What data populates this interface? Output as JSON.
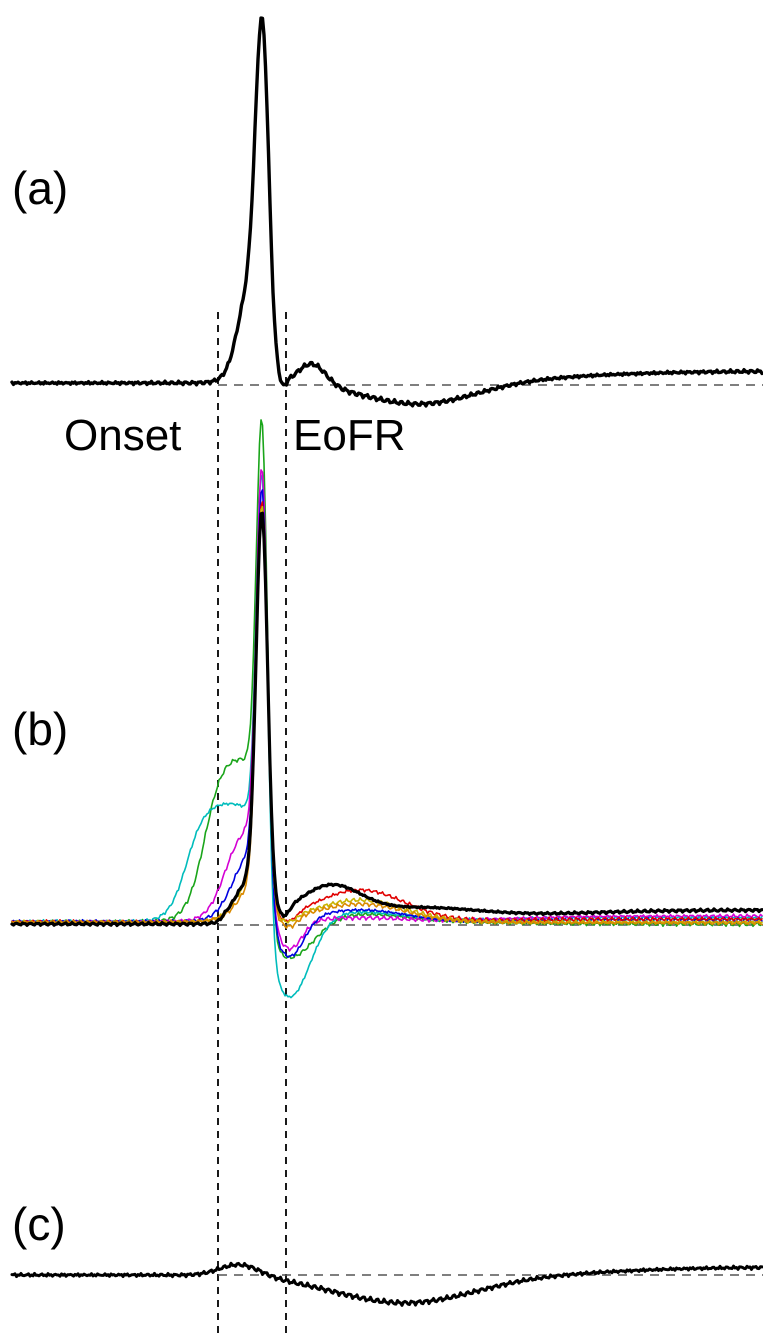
{
  "labels": {
    "panel_a": "(a)",
    "panel_b": "(b)",
    "panel_c": "(c)",
    "onset": "Onset",
    "eofr": "EoFR"
  },
  "colors": {
    "mean": "#000000",
    "traces": [
      "#1aa51a",
      "#00bcbc",
      "#d400d4",
      "#0000e0",
      "#e00000",
      "#c8b400",
      "#d98a00"
    ]
  },
  "icons": {}
}
